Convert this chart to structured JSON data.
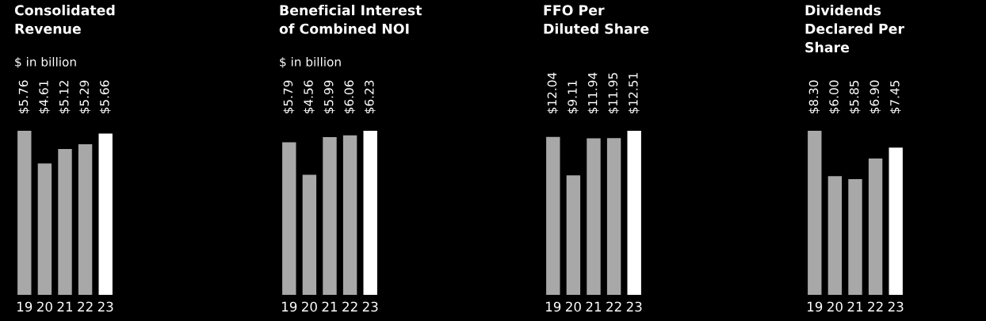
{
  "chart_data": [
    {
      "type": "bar",
      "title": "Consolidated\nRevenue",
      "subtitle": "$ in billion",
      "categories": [
        "19",
        "20",
        "21",
        "22",
        "23"
      ],
      "values": [
        5.76,
        4.61,
        5.12,
        5.29,
        5.66
      ],
      "colors": [
        "#a8a8a8",
        "#a8a8a8",
        "#a8a8a8",
        "#a8a8a8",
        "#ffffff"
      ],
      "value_labels": [
        "$5.76",
        "$4.61",
        "$5.12",
        "$5.29",
        "$5.66"
      ]
    },
    {
      "type": "bar",
      "title": "Beneficial Interest\nof Combined NOI",
      "subtitle": "$ in billion",
      "categories": [
        "19",
        "20",
        "21",
        "22",
        "23"
      ],
      "values": [
        5.79,
        4.56,
        5.99,
        6.06,
        6.23
      ],
      "colors": [
        "#a8a8a8",
        "#a8a8a8",
        "#a8a8a8",
        "#a8a8a8",
        "#ffffff"
      ],
      "value_labels": [
        "$5.79",
        "$4.56",
        "$5.99",
        "$6.06",
        "$6.23"
      ]
    },
    {
      "type": "bar",
      "title": "FFO Per\nDiluted Share",
      "categories": [
        "19",
        "20",
        "21",
        "22",
        "23"
      ],
      "values": [
        12.04,
        9.11,
        11.94,
        11.95,
        12.51
      ],
      "colors": [
        "#a8a8a8",
        "#a8a8a8",
        "#a8a8a8",
        "#a8a8a8",
        "#ffffff"
      ],
      "value_labels": [
        "$12.04",
        "$9.11",
        "$11.94",
        "$11.95",
        "$12.51"
      ]
    },
    {
      "type": "bar",
      "title": "Dividends\nDeclared Per\nShare",
      "categories": [
        "19",
        "20",
        "21",
        "22",
        "23"
      ],
      "values": [
        8.3,
        6.0,
        5.85,
        6.9,
        7.45
      ],
      "colors": [
        "#a8a8a8",
        "#a8a8a8",
        "#a8a8a8",
        "#a8a8a8",
        "#ffffff"
      ],
      "value_labels": [
        "$8.30",
        "$6.00",
        "$5.85",
        "$6.90",
        "$7.45"
      ]
    }
  ]
}
